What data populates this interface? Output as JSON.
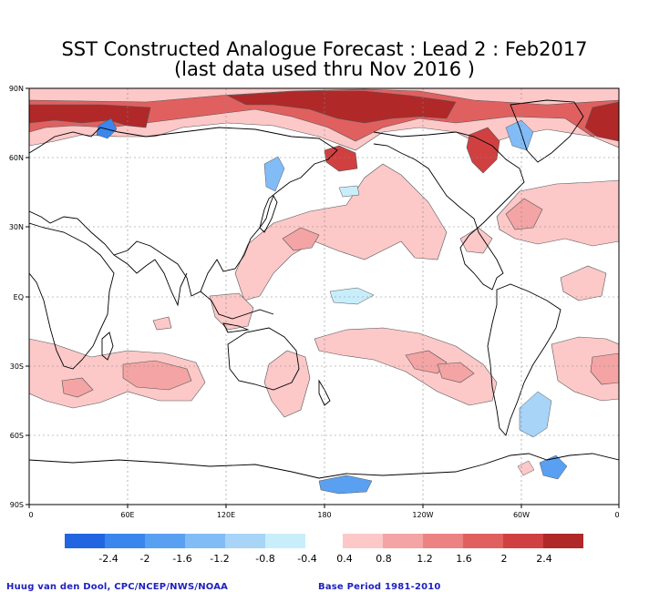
{
  "title": {
    "line1": "SST Constructed Analogue Forecast : Lead 2 : Feb2017",
    "line2": "(last data used thru Nov 2016 )"
  },
  "axes": {
    "lat_labels": [
      "90N",
      "60N",
      "30N",
      "EQ",
      "30S",
      "60S",
      "90S"
    ],
    "lon_labels": [
      "0",
      "60E",
      "120E",
      "180",
      "120W",
      "60W",
      "0"
    ]
  },
  "colorbar": {
    "neg_colors": [
      "#2166e0",
      "#3a86ec",
      "#5aa0f2",
      "#82bcf6",
      "#a8d4f8",
      "#c8eefc"
    ],
    "pos_colors": [
      "#fcc8c8",
      "#f4a4a4",
      "#ec8282",
      "#e06060",
      "#d04040",
      "#b02828"
    ],
    "neg_labels": [
      "-2.4",
      "-2",
      "-1.6",
      "-1.2",
      "-0.8",
      "-0.4"
    ],
    "pos_labels": [
      "0.4",
      "0.8",
      "1.2",
      "1.6",
      "2",
      "2.4"
    ]
  },
  "credits": {
    "left": "Huug van den Dool, CPC/NCEP/NWS/NOAA",
    "right": "Base Period 1981-2010"
  }
}
